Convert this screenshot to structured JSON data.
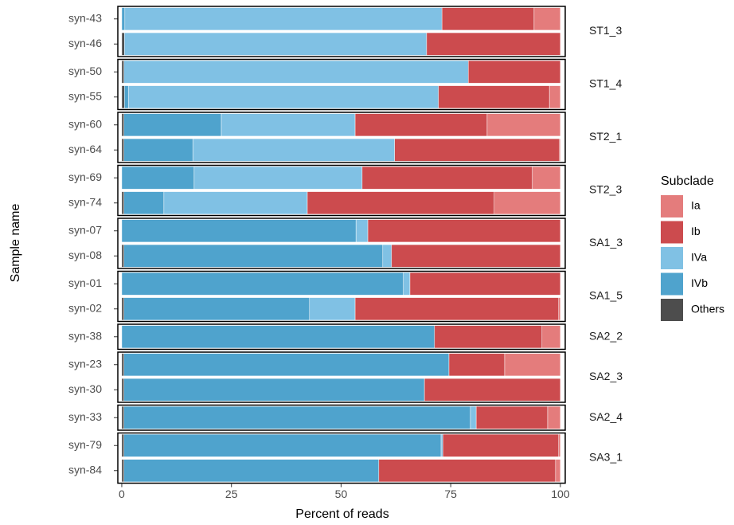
{
  "chart_data": {
    "type": "stacked-bar-faceted",
    "xlabel": "Percent of reads",
    "ylabel": "Sample name",
    "xlim": [
      -0.9,
      101.1
    ],
    "xticks": [
      0,
      25,
      50,
      75,
      100
    ],
    "facets": [
      {
        "label": "ST1_3",
        "categories": [
          "syn-43",
          "syn-46"
        ]
      },
      {
        "label": "ST1_4",
        "categories": [
          "syn-50",
          "syn-55"
        ]
      },
      {
        "label": "ST2_1",
        "categories": [
          "syn-60",
          "syn-64"
        ]
      },
      {
        "label": "ST2_3",
        "categories": [
          "syn-69",
          "syn-74"
        ]
      },
      {
        "label": "SA1_3",
        "categories": [
          "syn-07",
          "syn-08"
        ]
      },
      {
        "label": "SA1_5",
        "categories": [
          "syn-01",
          "syn-02"
        ]
      },
      {
        "label": "SA2_2",
        "categories": [
          "syn-38"
        ]
      },
      {
        "label": "SA2_3",
        "categories": [
          "syn-23",
          "syn-30"
        ]
      },
      {
        "label": "SA2_4",
        "categories": [
          "syn-33"
        ]
      },
      {
        "label": "SA3_1",
        "categories": [
          "syn-79",
          "syn-84"
        ]
      }
    ],
    "legend_title": "Subclade",
    "series": [
      {
        "name": "Ia",
        "color": "#e47c7c",
        "values": [
          6,
          0,
          0,
          2.5,
          16.7,
          0.2,
          6.4,
          15.1,
          0,
          0,
          0,
          0.4,
          4.2,
          12.7,
          0,
          2.9,
          0.4,
          1.1
        ]
      },
      {
        "name": "Ib",
        "color": "#cc4b4e",
        "values": [
          21,
          30.5,
          21,
          25.3,
          30.1,
          37.6,
          38.8,
          42.6,
          43.9,
          38.5,
          34.3,
          46.4,
          24.5,
          12.7,
          31,
          16.3,
          26.4,
          40.3
        ]
      },
      {
        "name": "IVa",
        "color": "#80c1e4",
        "values": [
          72.3,
          68.9,
          78.5,
          70.7,
          30.5,
          46,
          38.3,
          32.7,
          2.7,
          2,
          1.5,
          10.4,
          0,
          0,
          0,
          1.3,
          0.4,
          0
        ]
      },
      {
        "name": "IVb",
        "color": "#4fa3cd",
        "values": [
          0.7,
          0,
          0,
          0.9,
          22.2,
          15.7,
          16.5,
          9.1,
          53.4,
          59,
          64.2,
          42.3,
          71.3,
          74.1,
          68.5,
          79,
          72.3,
          58.1
        ]
      },
      {
        "name": "Others",
        "color": "#4d4d4d",
        "values": [
          0,
          0.6,
          0.5,
          0.6,
          0.5,
          0.5,
          0,
          0.5,
          0,
          0.5,
          0,
          0.5,
          0,
          0.5,
          0.5,
          0.5,
          0.5,
          0.5
        ]
      }
    ]
  }
}
